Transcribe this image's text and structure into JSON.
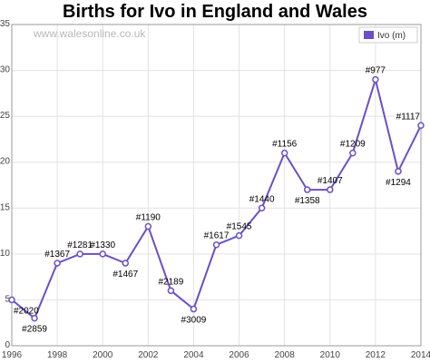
{
  "chart_data": {
    "type": "line",
    "title": "Births for Ivo in England and Wales",
    "watermark": "www.walesonline.co.uk",
    "x": [
      1996,
      1997,
      1998,
      1999,
      2000,
      2001,
      2002,
      2003,
      2004,
      2005,
      2006,
      2007,
      2008,
      2009,
      2010,
      2011,
      2012,
      2013,
      2014
    ],
    "series": [
      {
        "name": "Ivo (m)",
        "color": "#6a4fc9",
        "values": [
          5,
          3,
          9,
          10,
          10,
          9,
          13,
          6,
          4,
          11,
          12,
          15,
          21,
          17,
          17,
          21,
          29,
          19,
          24
        ],
        "labels": [
          "#2020",
          "#2859",
          "#1367",
          "#1281",
          "#1330",
          "#1467",
          "#1190",
          "#2189",
          "#3009",
          "#1617",
          "#1545",
          "#1440",
          "#1156",
          "#1358",
          "#1407",
          "#1209",
          "#977",
          "#1294",
          "#1117"
        ]
      }
    ],
    "xticks": [
      "1996",
      "1998",
      "2000",
      "2002",
      "2004",
      "2006",
      "2008",
      "2010",
      "2012",
      "2014"
    ],
    "yticks": [
      "0",
      "5",
      "10",
      "15",
      "20",
      "25",
      "30",
      "35"
    ],
    "xlim": [
      1996,
      2014
    ],
    "ylim": [
      0,
      35
    ],
    "grid": true,
    "legend": "top-right",
    "xlabel": "",
    "ylabel": ""
  }
}
